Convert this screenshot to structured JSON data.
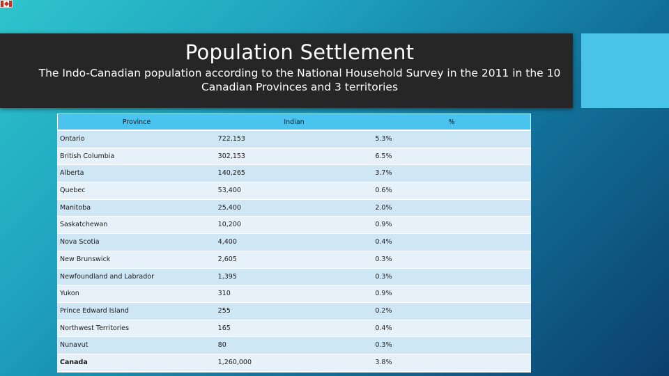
{
  "slide": {
    "title": "Population Settlement",
    "subtitle": "The Indo-Canadian population according to the National Household Survey in the 2011 in the 10 Canadian Provinces and 3 territories"
  },
  "table": {
    "headers": [
      "Province",
      "Indian",
      "%"
    ],
    "rows": [
      [
        "Ontario",
        "722,153",
        "5.3%"
      ],
      [
        "British Columbia",
        "302,153",
        "6.5%"
      ],
      [
        "Alberta",
        "140,265",
        "3.7%"
      ],
      [
        "Quebec",
        "53,400",
        "0.6%"
      ],
      [
        "Manitoba",
        "25,400",
        "2.0%"
      ],
      [
        "Saskatchewan",
        "10,200",
        "0.9%"
      ],
      [
        "Nova Scotia",
        "4,400",
        "0.4%"
      ],
      [
        "New Brunswick",
        "2,605",
        "0.3%"
      ],
      [
        "Newfoundland and Labrador",
        "1,395",
        "0.3%"
      ],
      [
        "Yukon",
        "310",
        "0.9%"
      ],
      [
        "Prince Edward Island",
        "255",
        "0.2%"
      ],
      [
        "Northwest Territories",
        "165",
        "0.4%"
      ],
      [
        "Nunavut",
        "80",
        "0.3%"
      ],
      [
        "Canada",
        "1,260,000",
        "3.8%"
      ]
    ]
  },
  "colors": {
    "title_band": "#262626",
    "accent": "#49c3e8",
    "header_row": "#4ac3ef",
    "row_odd": "#cfe6f5",
    "row_even": "#e7f1f9"
  },
  "icons": {
    "flag": "canada-flag-icon"
  }
}
